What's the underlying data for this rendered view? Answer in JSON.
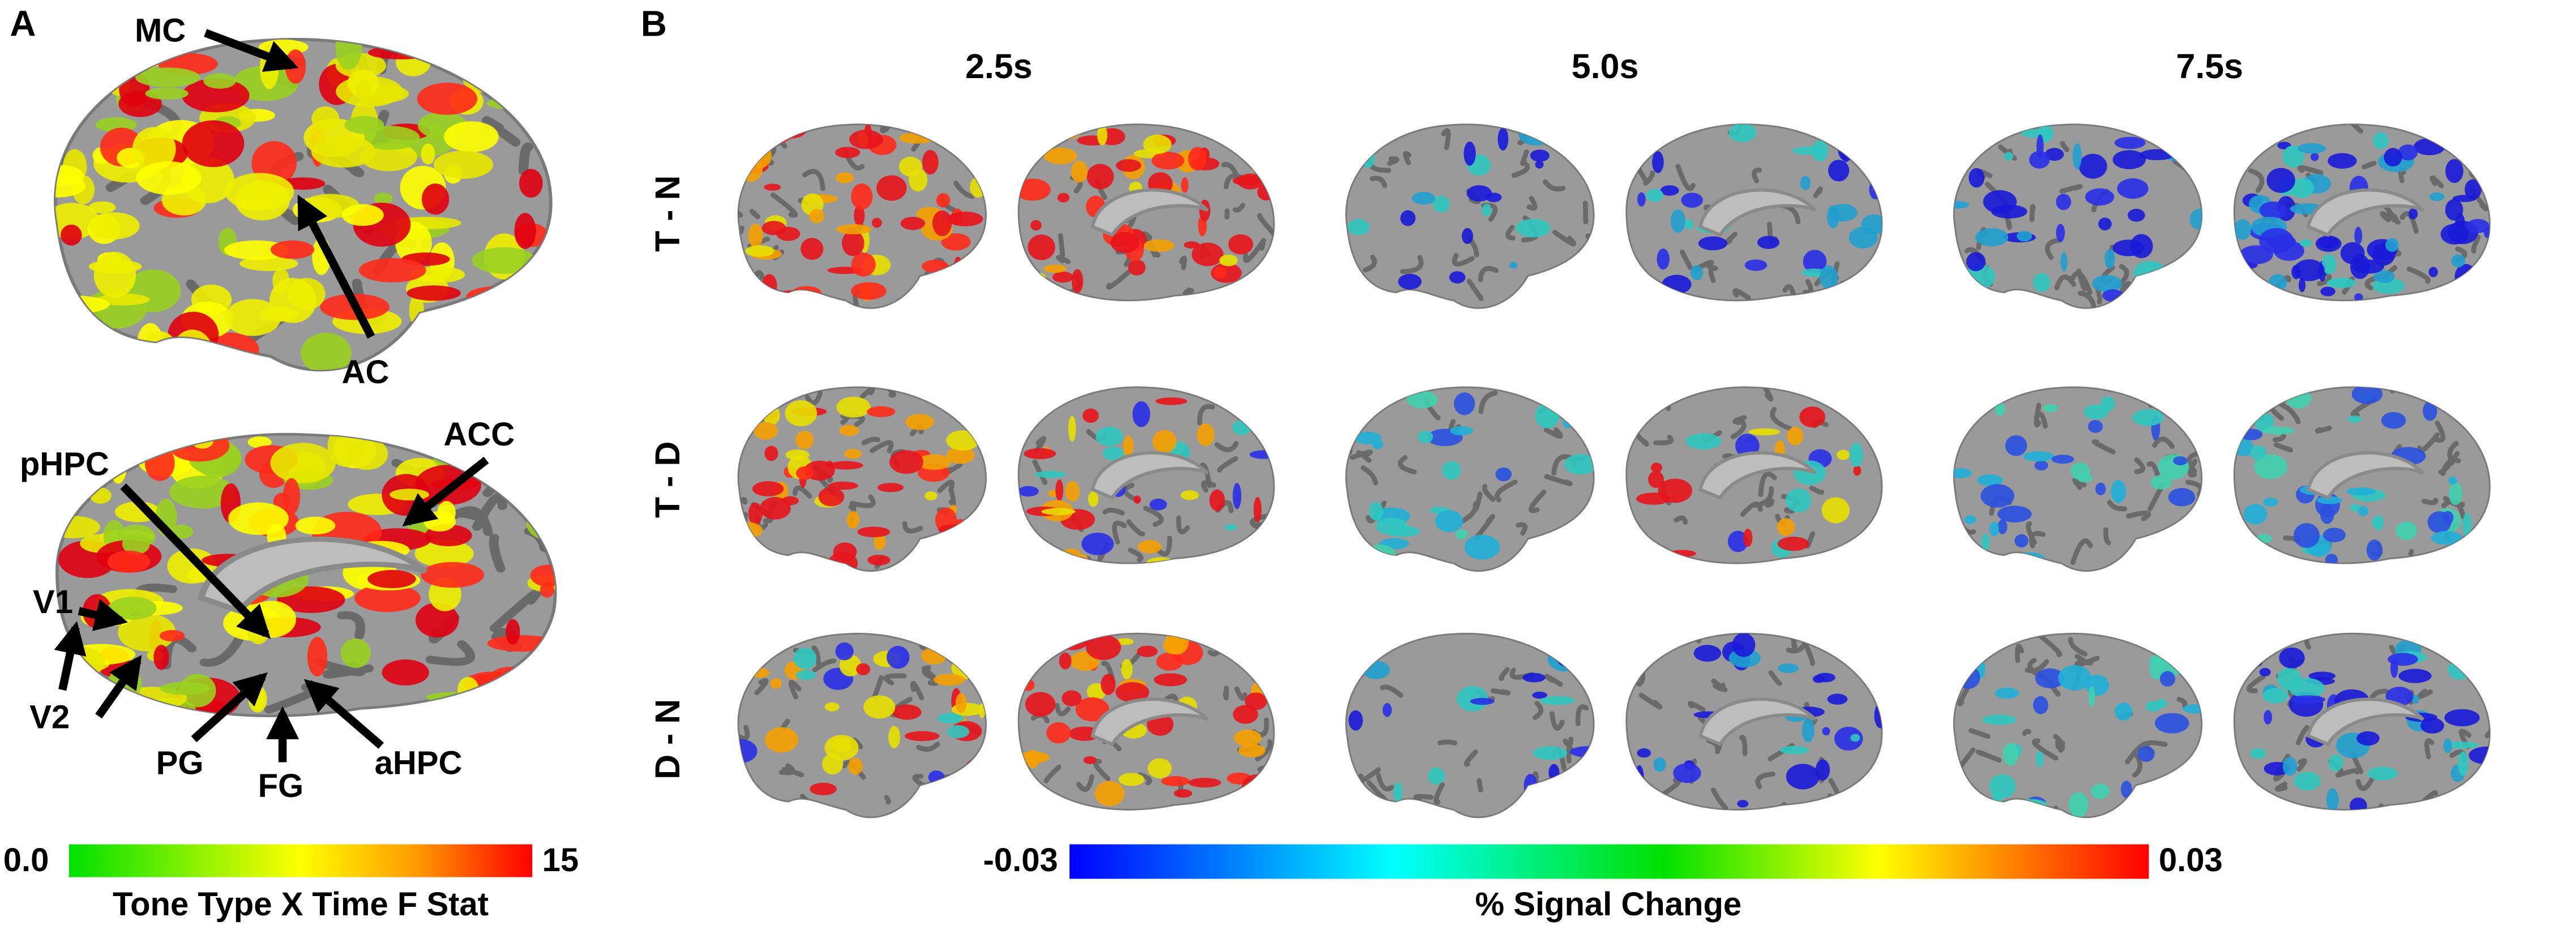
{
  "panel_a": {
    "label": "A",
    "annotations": [
      "MC",
      "AC",
      "ACC",
      "pHPC",
      "V1",
      "V2",
      "PG",
      "FG",
      "aHPC"
    ],
    "colorbar": {
      "min": "0.0",
      "max": "15",
      "label": "Tone Type X Time F Stat"
    }
  },
  "panel_b": {
    "label": "B",
    "columns": [
      "2.5s",
      "5.0s",
      "7.5s"
    ],
    "rows": [
      "T - N",
      "T - D",
      "D - N"
    ],
    "colorbar": {
      "min": "-0.03",
      "max": "0.03",
      "label": "% Signal Change"
    }
  }
}
